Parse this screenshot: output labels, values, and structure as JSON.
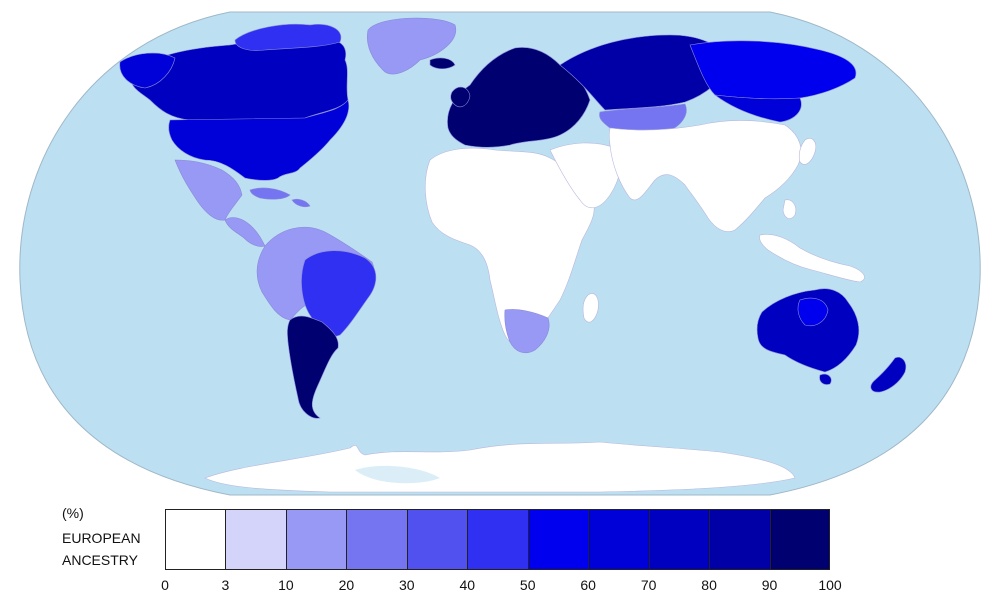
{
  "legend": {
    "unit": "(%)",
    "title_line1": "EUROPEAN",
    "title_line2": "ANCESTRY",
    "ticks": [
      "0",
      "3",
      "10",
      "20",
      "30",
      "40",
      "50",
      "60",
      "70",
      "80",
      "90",
      "100"
    ],
    "bins": [
      {
        "range": [
          0,
          3
        ],
        "color": "#ffffff"
      },
      {
        "range": [
          3,
          10
        ],
        "color": "#d4d4fb"
      },
      {
        "range": [
          10,
          20
        ],
        "color": "#9898f5"
      },
      {
        "range": [
          20,
          30
        ],
        "color": "#7575f2"
      },
      {
        "range": [
          30,
          40
        ],
        "color": "#5151ef"
      },
      {
        "range": [
          40,
          50
        ],
        "color": "#3030f2"
      },
      {
        "range": [
          50,
          60
        ],
        "color": "#0000ee"
      },
      {
        "range": [
          60,
          70
        ],
        "color": "#0000d8"
      },
      {
        "range": [
          70,
          80
        ],
        "color": "#0000c0"
      },
      {
        "range": [
          80,
          90
        ],
        "color": "#0000a6"
      },
      {
        "range": [
          90,
          100
        ],
        "color": "#000070"
      }
    ]
  },
  "map": {
    "ocean_color": "#bcdff2",
    "projection": "Robinson",
    "regions": [
      {
        "name": "Canada",
        "level_pct": 75
      },
      {
        "name": "Greenland",
        "level_pct": 10
      },
      {
        "name": "United States",
        "level_pct": 65
      },
      {
        "name": "Mexico",
        "level_pct": 15
      },
      {
        "name": "Central America",
        "level_pct": 15
      },
      {
        "name": "Caribbean",
        "level_pct": 20
      },
      {
        "name": "Brazil",
        "level_pct": 40
      },
      {
        "name": "Andean South America",
        "level_pct": 15
      },
      {
        "name": "Argentina",
        "level_pct": 90
      },
      {
        "name": "Europe",
        "level_pct": 95
      },
      {
        "name": "Russia",
        "level_pct": 85
      },
      {
        "name": "Siberia",
        "level_pct": 50
      },
      {
        "name": "Africa",
        "level_pct": 0
      },
      {
        "name": "South Africa",
        "level_pct": 10
      },
      {
        "name": "Asia",
        "level_pct": 0
      },
      {
        "name": "Australia",
        "level_pct": 75
      },
      {
        "name": "New Zealand",
        "level_pct": 70
      },
      {
        "name": "Antarctica",
        "level_pct": 0
      }
    ]
  }
}
